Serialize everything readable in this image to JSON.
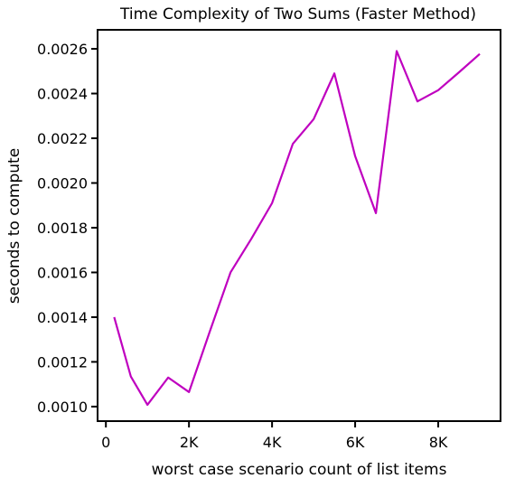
{
  "chart_data": {
    "type": "line",
    "title": "Time Complexity of Two Sums (Faster Method)",
    "xlabel": "worst case scenario count of list items",
    "ylabel": "seconds to compute",
    "xlim": [
      -200,
      9500
    ],
    "ylim": [
      0.000935,
      0.002685
    ],
    "x_ticks": [
      {
        "value": 0,
        "label": "0"
      },
      {
        "value": 2000,
        "label": "2K"
      },
      {
        "value": 4000,
        "label": "4K"
      },
      {
        "value": 6000,
        "label": "6K"
      },
      {
        "value": 8000,
        "label": "8K"
      }
    ],
    "y_ticks": [
      {
        "value": 0.001,
        "label": "0.0010"
      },
      {
        "value": 0.0012,
        "label": "0.0012"
      },
      {
        "value": 0.0014,
        "label": "0.0014"
      },
      {
        "value": 0.0016,
        "label": "0.0016"
      },
      {
        "value": 0.0018,
        "label": "0.0018"
      },
      {
        "value": 0.002,
        "label": "0.0020"
      },
      {
        "value": 0.0022,
        "label": "0.0022"
      },
      {
        "value": 0.0024,
        "label": "0.0024"
      },
      {
        "value": 0.0026,
        "label": "0.0026"
      }
    ],
    "grid": false,
    "series": [
      {
        "color": "#bf00bf",
        "x": [
          200,
          600,
          1000,
          1500,
          2000,
          2500,
          3000,
          3500,
          4000,
          4500,
          5000,
          5500,
          6000,
          6500,
          7000,
          7500,
          8000,
          8500,
          9000
        ],
        "y": [
          0.0014,
          0.001135,
          0.001008,
          0.00113,
          0.001065,
          0.001335,
          0.0016,
          0.00175,
          0.00191,
          0.002175,
          0.002285,
          0.00249,
          0.00212,
          0.001865,
          0.00259,
          0.002365,
          0.002415,
          0.002495,
          0.002577
        ]
      }
    ]
  }
}
